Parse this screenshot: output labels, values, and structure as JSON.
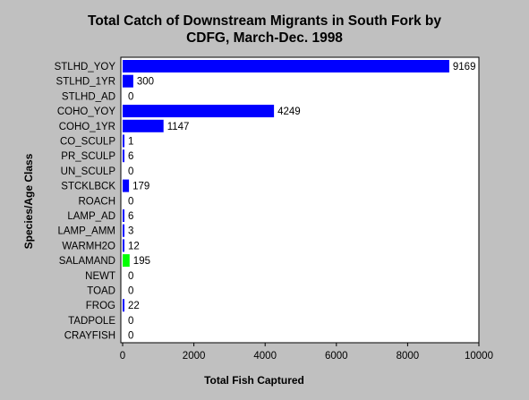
{
  "chart_data": {
    "type": "bar",
    "orientation": "horizontal",
    "title_lines": [
      "Total Catch of Downstream Migrants in South Fork by",
      "CDFG, March-Dec. 1998"
    ],
    "xlabel": "Total Fish Captured",
    "ylabel": "Species/Age Class",
    "xlim": [
      0,
      10000
    ],
    "xticks": [
      0,
      2000,
      4000,
      6000,
      8000,
      10000
    ],
    "grid": false,
    "categories": [
      "STLHD_YOY",
      "STLHD_1YR",
      "STLHD_AD",
      "COHO_YOY",
      "COHO_1YR",
      "CO_SCULP",
      "PR_SCULP",
      "UN_SCULP",
      "STCKLBCK",
      "ROACH",
      "LAMP_AD",
      "LAMP_AMM",
      "WARMH2O",
      "SALAMAND",
      "NEWT",
      "TOAD",
      "FROG",
      "TADPOLE",
      "CRAYFISH"
    ],
    "values": [
      9169,
      300,
      0,
      4249,
      1147,
      1,
      6,
      0,
      179,
      0,
      6,
      3,
      12,
      195,
      0,
      0,
      22,
      0,
      0
    ],
    "bar_colors": [
      "#0000ff",
      "#0000ff",
      "#0000ff",
      "#0000ff",
      "#0000ff",
      "#0000ff",
      "#0000ff",
      "#0000ff",
      "#0000ff",
      "#0000ff",
      "#0000ff",
      "#0000ff",
      "#0000ff",
      "#00ff00",
      "#0000ff",
      "#0000ff",
      "#0000ff",
      "#0000ff",
      "#0000ff"
    ],
    "plot_background": "#ffffff",
    "page_background": "#c0c0c0"
  }
}
